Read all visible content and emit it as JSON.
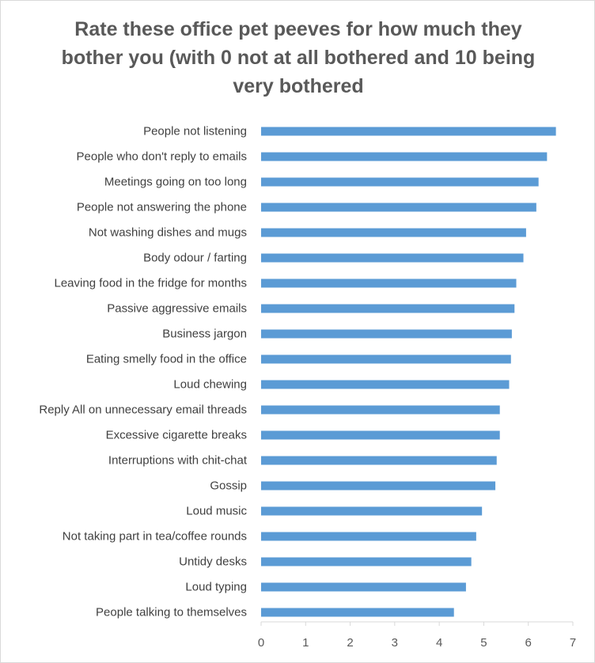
{
  "chart_data": {
    "type": "bar",
    "orientation": "horizontal",
    "title": "Rate these office pet peeves for how much they bother you (with 0 not at all bothered and 10 being very bothered",
    "xlabel": "",
    "ylabel": "",
    "xlim": [
      0,
      7
    ],
    "x_ticks": [
      0,
      1,
      2,
      3,
      4,
      5,
      6,
      7
    ],
    "grid": false,
    "legend": "none",
    "bar_color": "#5b9bd5",
    "categories": [
      "People not listening",
      "People who don't reply to emails",
      "Meetings going on too long",
      "People not answering the phone",
      "Not washing dishes and mugs",
      "Body odour / farting",
      "Leaving food in the fridge for months",
      "Passive aggressive emails",
      "Business jargon",
      "Eating smelly food in the office",
      "Loud chewing",
      "Reply All on unnecessary email threads",
      "Excessive cigarette breaks",
      "Interruptions with chit-chat",
      "Gossip",
      "Loud music",
      "Not taking part in tea/coffee rounds",
      "Untidy desks",
      "Loud typing",
      "People talking to themselves"
    ],
    "values": [
      6.62,
      6.42,
      6.23,
      6.18,
      5.95,
      5.89,
      5.73,
      5.69,
      5.63,
      5.61,
      5.57,
      5.36,
      5.36,
      5.29,
      5.26,
      4.96,
      4.83,
      4.72,
      4.6,
      4.33
    ]
  }
}
